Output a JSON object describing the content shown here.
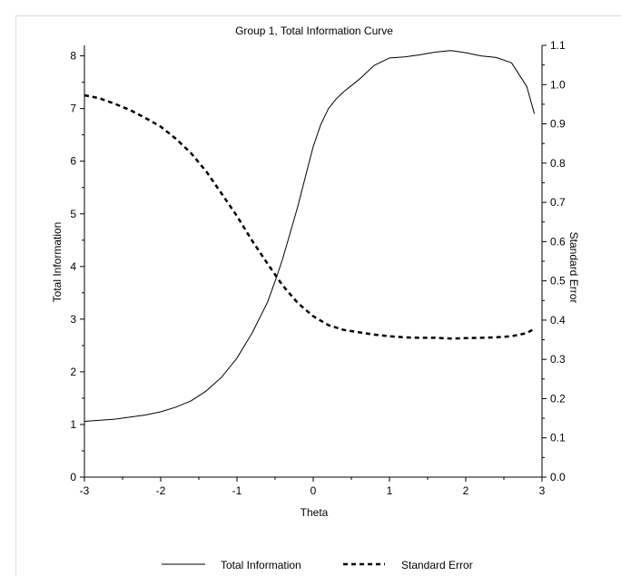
{
  "chart_data": {
    "type": "line",
    "title": "Group 1, Total Information Curve",
    "xlabel": "Theta",
    "ylabel_left": "Total Information",
    "ylabel_right": "Standard Error",
    "xlim": [
      -3,
      3
    ],
    "ylim_left": [
      0,
      8.2
    ],
    "ylim_right": [
      0,
      1.1
    ],
    "x_ticks": [
      "-3",
      "-2",
      "-1",
      "0",
      "1",
      "2",
      "3"
    ],
    "y_left_ticks": [
      "0",
      "1",
      "2",
      "3",
      "4",
      "5",
      "6",
      "7",
      "8"
    ],
    "y_right_ticks": [
      "0.0",
      "0.1",
      "0.2",
      "0.3",
      "0.4",
      "0.5",
      "0.6",
      "0.7",
      "0.8",
      "0.9",
      "1.0",
      "1.1"
    ],
    "grid": false,
    "legend_placement": "bottom",
    "series": [
      {
        "name": "Total Information",
        "axis": "left",
        "style": "solid",
        "x": [
          -3.0,
          -2.6,
          -2.2,
          -2.0,
          -1.8,
          -1.6,
          -1.4,
          -1.2,
          -1.0,
          -0.8,
          -0.6,
          -0.5,
          -0.4,
          -0.3,
          -0.2,
          -0.1,
          0.0,
          0.1,
          0.2,
          0.3,
          0.4,
          0.6,
          0.8,
          1.0,
          1.2,
          1.4,
          1.6,
          1.8,
          2.0,
          2.2,
          2.4,
          2.6,
          2.8,
          2.9
        ],
        "y": [
          1.06,
          1.1,
          1.18,
          1.24,
          1.33,
          1.45,
          1.64,
          1.9,
          2.26,
          2.74,
          3.32,
          3.72,
          4.15,
          4.65,
          5.15,
          5.72,
          6.28,
          6.7,
          7.0,
          7.18,
          7.32,
          7.55,
          7.82,
          7.96,
          7.98,
          8.02,
          8.07,
          8.1,
          8.06,
          8.0,
          7.97,
          7.87,
          7.42,
          6.9
        ]
      },
      {
        "name": "Standard Error",
        "axis": "right",
        "style": "dashed",
        "x": [
          -3.0,
          -2.8,
          -2.6,
          -2.4,
          -2.2,
          -2.0,
          -1.8,
          -1.6,
          -1.4,
          -1.2,
          -1.0,
          -0.8,
          -0.6,
          -0.4,
          -0.2,
          0.0,
          0.2,
          0.4,
          0.6,
          0.8,
          1.0,
          1.2,
          1.4,
          1.6,
          1.8,
          2.0,
          2.2,
          2.4,
          2.6,
          2.8,
          2.9
        ],
        "y": [
          0.973,
          0.965,
          0.951,
          0.935,
          0.915,
          0.893,
          0.862,
          0.825,
          0.778,
          0.722,
          0.665,
          0.602,
          0.544,
          0.488,
          0.443,
          0.41,
          0.387,
          0.375,
          0.369,
          0.363,
          0.359,
          0.356,
          0.355,
          0.355,
          0.353,
          0.354,
          0.355,
          0.356,
          0.359,
          0.367,
          0.378
        ]
      }
    ]
  }
}
